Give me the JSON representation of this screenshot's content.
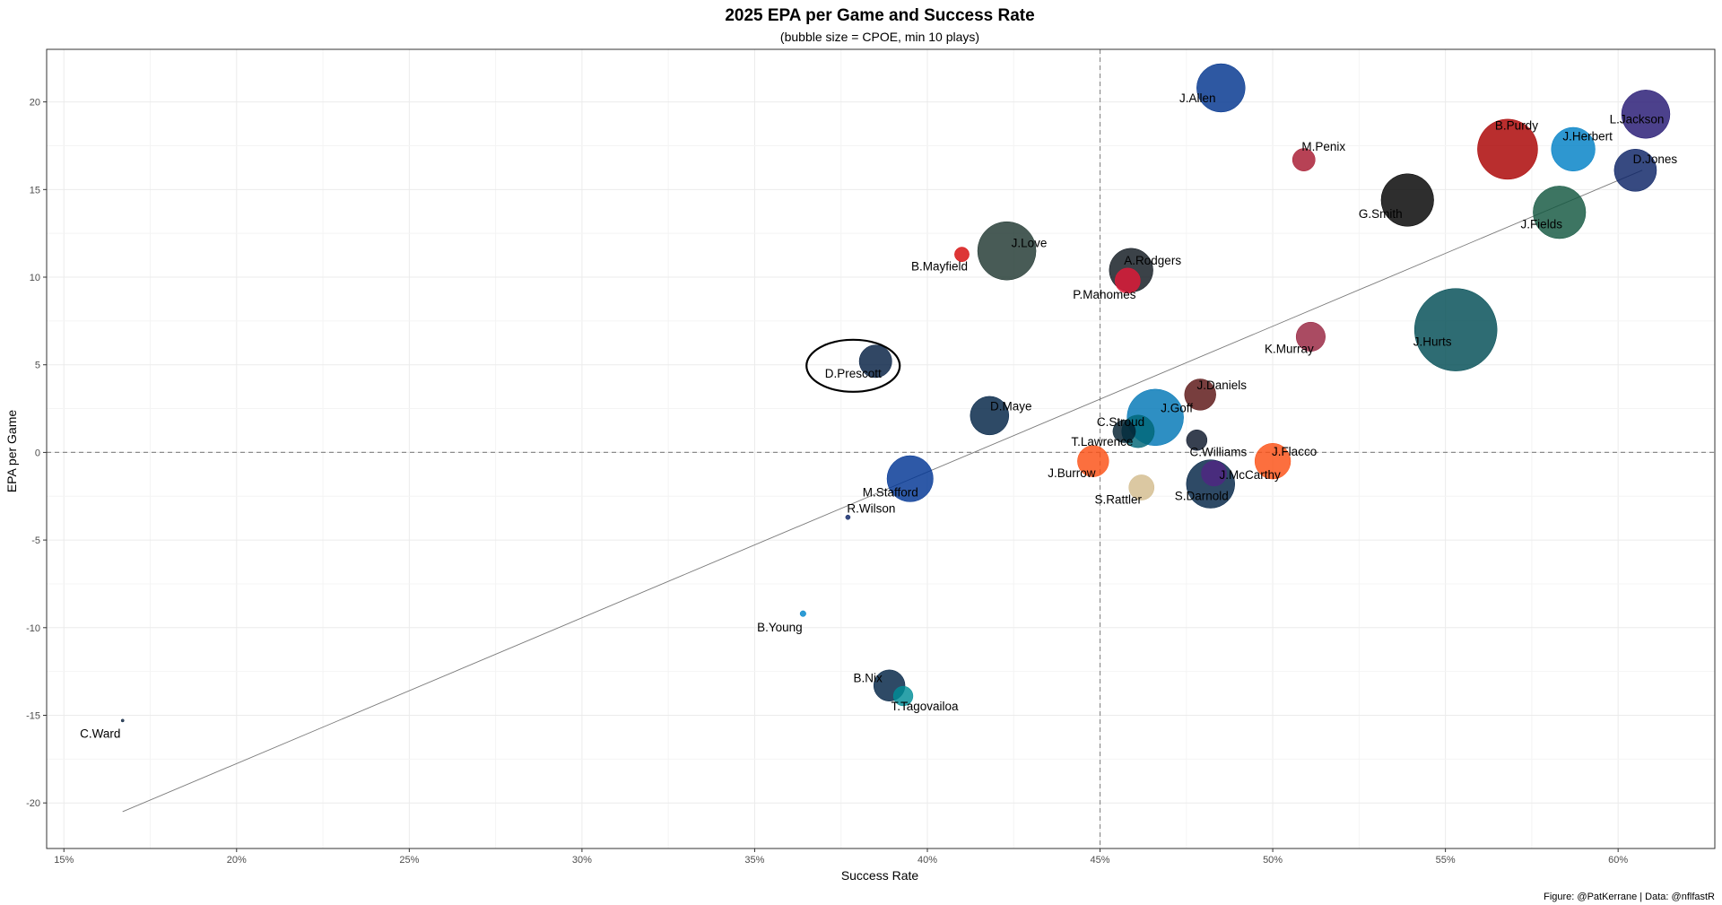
{
  "chart_data": {
    "type": "scatter",
    "title": "2025 EPA per Game and Success Rate",
    "subtitle": "(bubble size = CPOE, min 10 plays)",
    "xlabel": "Success Rate",
    "ylabel": "EPA per Game",
    "caption": "Figure: @PatKerrane | Data: @nflfastR",
    "xlim": [
      0.145,
      0.628
    ],
    "ylim": [
      -22.6,
      23.0
    ],
    "x_ticks": [
      0.15,
      0.2,
      0.25,
      0.3,
      0.35,
      0.4,
      0.45,
      0.5,
      0.55,
      0.6
    ],
    "x_tick_labels": [
      "15%",
      "20%",
      "25%",
      "30%",
      "35%",
      "40%",
      "45%",
      "50%",
      "55%",
      "60%"
    ],
    "y_ticks": [
      -20,
      -15,
      -10,
      -5,
      0,
      5,
      10,
      15,
      20
    ],
    "y_tick_labels": [
      "-20",
      "-15",
      "-10",
      "-5",
      "0",
      "5",
      "10",
      "15",
      "20"
    ],
    "reference_lines": {
      "x": 0.45,
      "y": 0
    },
    "trend_line": {
      "x": [
        0.167,
        0.607
      ],
      "y": [
        -20.5,
        16.1
      ]
    },
    "grid": true,
    "highlight": "D.Prescott",
    "points": [
      {
        "name": "J.Allen",
        "x": 0.485,
        "y": 20.8,
        "size": 5.5,
        "color": "#00338D"
      },
      {
        "name": "L.Jackson",
        "x": 0.608,
        "y": 19.3,
        "size": 5.5,
        "color": "#241773"
      },
      {
        "name": "B.Purdy",
        "x": 0.568,
        "y": 17.3,
        "size": 8.5,
        "color": "#AA0000"
      },
      {
        "name": "J.Herbert",
        "x": 0.587,
        "y": 17.3,
        "size": 4.5,
        "color": "#0080C6"
      },
      {
        "name": "M.Penix",
        "x": 0.509,
        "y": 16.7,
        "size": 1.2,
        "color": "#A71930"
      },
      {
        "name": "D.Jones",
        "x": 0.605,
        "y": 16.1,
        "size": 4.2,
        "color": "#0B2265"
      },
      {
        "name": "G.Smith",
        "x": 0.539,
        "y": 14.4,
        "size": 6.5,
        "color": "#000000"
      },
      {
        "name": "J.Fields",
        "x": 0.583,
        "y": 13.7,
        "size": 6.5,
        "color": "#125740"
      },
      {
        "name": "J.Love",
        "x": 0.423,
        "y": 11.5,
        "size": 8.0,
        "color": "#203731"
      },
      {
        "name": "B.Mayfield",
        "x": 0.41,
        "y": 11.3,
        "size": 0.5,
        "color": "#D50A0A"
      },
      {
        "name": "A.Rodgers",
        "x": 0.459,
        "y": 10.4,
        "size": 4.5,
        "color": "#101820"
      },
      {
        "name": "P.Mahomes",
        "x": 0.458,
        "y": 9.8,
        "size": 1.5,
        "color": "#E31837"
      },
      {
        "name": "J.Hurts",
        "x": 0.553,
        "y": 7.0,
        "size": 16.0,
        "color": "#004C54"
      },
      {
        "name": "K.Murray",
        "x": 0.511,
        "y": 6.6,
        "size": 2.0,
        "color": "#97233F"
      },
      {
        "name": "D.Prescott",
        "x": 0.385,
        "y": 5.2,
        "size": 2.5,
        "color": "#041E42"
      },
      {
        "name": "J.Daniels",
        "x": 0.479,
        "y": 3.3,
        "size": 2.3,
        "color": "#5A1414"
      },
      {
        "name": "D.Maye",
        "x": 0.418,
        "y": 2.1,
        "size": 3.5,
        "color": "#002244"
      },
      {
        "name": "J.Goff",
        "x": 0.466,
        "y": 2.0,
        "size": 7.5,
        "color": "#0076B6"
      },
      {
        "name": "C.Stroud",
        "x": 0.457,
        "y": 1.2,
        "size": 1.2,
        "color": "#03202F"
      },
      {
        "name": "T.Lawrence",
        "x": 0.461,
        "y": 1.2,
        "size": 2.5,
        "color": "#006778"
      },
      {
        "name": "C.Williams",
        "x": 0.478,
        "y": 0.7,
        "size": 1.0,
        "color": "#0B162A"
      },
      {
        "name": "J.Flacco",
        "x": 0.5,
        "y": -0.5,
        "size": 3.0,
        "color": "#FB4F14"
      },
      {
        "name": "J.Burrow",
        "x": 0.448,
        "y": -0.5,
        "size": 2.3,
        "color": "#FB4F14"
      },
      {
        "name": "J.McCarthy",
        "x": 0.483,
        "y": -1.2,
        "size": 1.5,
        "color": "#4F2683"
      },
      {
        "name": "M.Stafford",
        "x": 0.395,
        "y": -1.5,
        "size": 5.0,
        "color": "#003594"
      },
      {
        "name": "S.Darnold",
        "x": 0.482,
        "y": -1.8,
        "size": 5.5,
        "color": "#002244"
      },
      {
        "name": "S.Rattler",
        "x": 0.462,
        "y": -2.0,
        "size": 1.5,
        "color": "#D3BC8D"
      },
      {
        "name": "R.Wilson",
        "x": 0.377,
        "y": -3.7,
        "size": 0.05,
        "color": "#0B2265"
      },
      {
        "name": "B.Young",
        "x": 0.364,
        "y": -9.2,
        "size": 0.08,
        "color": "#0085CA"
      },
      {
        "name": "B.Nix",
        "x": 0.389,
        "y": -13.3,
        "size": 2.3,
        "color": "#002244"
      },
      {
        "name": "T.Tagovailoa",
        "x": 0.393,
        "y": -13.9,
        "size": 0.9,
        "color": "#008E97"
      },
      {
        "name": "C.Ward",
        "x": 0.167,
        "y": -15.3,
        "size": 0.02,
        "color": "#0C2340"
      }
    ]
  }
}
